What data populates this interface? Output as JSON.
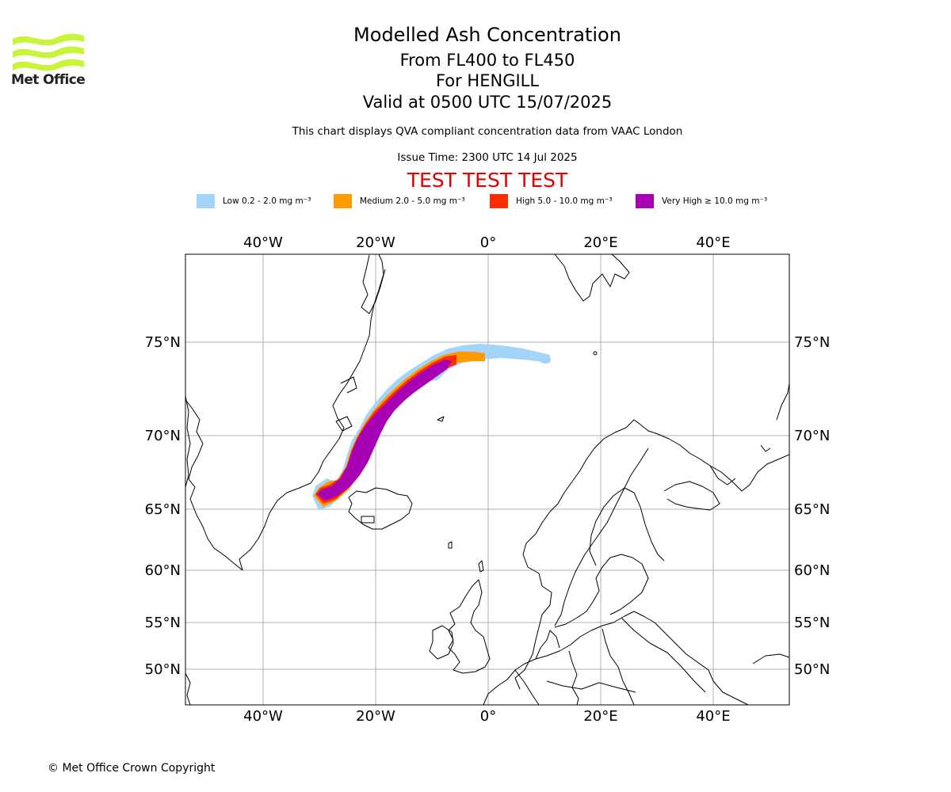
{
  "logo": {
    "name": "Met Office",
    "brand_color": "#c8f53a"
  },
  "titles": {
    "main": "Modelled Ash Concentration",
    "level": "From FL400 to FL450",
    "volcano": "For HENGILL",
    "valid": "Valid at 0500 UTC 15/07/2025",
    "compliance": "This chart displays QVA compliant concentration data from VAAC London",
    "issue": "Issue Time: 2300 UTC 14 Jul 2025",
    "test": "TEST TEST TEST"
  },
  "legend": [
    {
      "label": "Low 0.2 - 2.0 mg m⁻³",
      "color": "#a3d5fb"
    },
    {
      "label": "Medium 2.0 - 5.0 mg m⁻³",
      "color": "#ff9a00"
    },
    {
      "label": "High 5.0 - 10.0 mg m⁻³",
      "color": "#ff2c00"
    },
    {
      "label": "Very High  ≥  10.0 mg m⁻³",
      "color": "#a800b4"
    }
  ],
  "axes": {
    "longitudes": [
      "40°W",
      "20°W",
      "0°",
      "20°E",
      "40°E"
    ],
    "latitudes": [
      "75°N",
      "70°N",
      "65°N",
      "60°N",
      "55°N",
      "50°N"
    ]
  },
  "copyright": "© Met Office Crown Copyright"
}
